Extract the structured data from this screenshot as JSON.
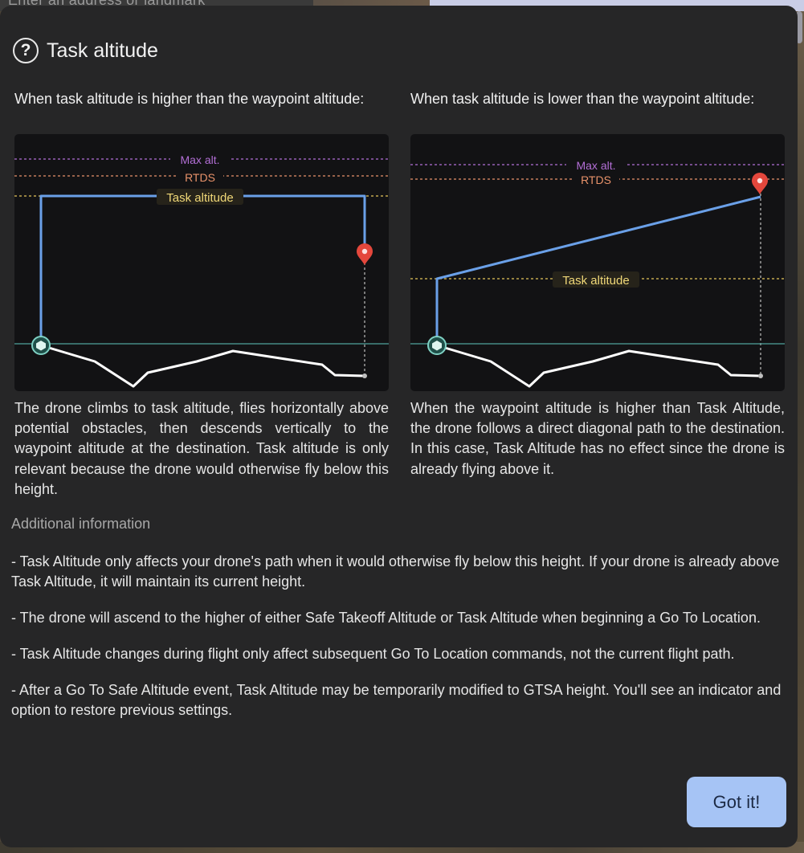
{
  "background": {
    "search_text": "Enter an address or landmark"
  },
  "dialog": {
    "title": "Task altitude",
    "help_icon_glyph": "?",
    "left": {
      "heading": "When task altitude is higher than the waypoint altitude:",
      "description": "The drone climbs to task altitude, flies horizontally above potential obstacles, then descends vertically to the waypoint altitude at the destination. Task altitude is only relevant because the drone would otherwise fly below this height.",
      "diagram": {
        "max_alt_label": "Max alt.",
        "rtds_label": "RTDS",
        "task_alt_label": "Task altitude"
      }
    },
    "right": {
      "heading": "When task altitude is lower than the waypoint altitude:",
      "description": "When the waypoint altitude is higher than Task Altitude, the drone follows a direct diagonal path to the destination. In this case, Task Altitude has no effect since the drone is already flying above it.",
      "diagram": {
        "max_alt_label": "Max alt.",
        "rtds_label": "RTDS",
        "task_alt_label": "Task altitude"
      }
    },
    "additional_title": "Additional information",
    "additional_items": [
      "- Task Altitude only affects your drone's path when it would otherwise fly below this height. If your drone is already above Task Altitude, it will maintain its current height.",
      "- The drone will ascend to the higher of either Safe Takeoff Altitude or Task Altitude when beginning a Go To Location.",
      "- Task Altitude changes during flight only affect subsequent Go To Location commands, not the current flight path.",
      "- After a Go To Safe Altitude event, Task Altitude may be temporarily modified to GTSA height. You'll see an indicator and option to restore previous settings."
    ],
    "got_it_label": "Got it!"
  },
  "colors": {
    "max_alt": "#b36fd6",
    "rtds": "#e8926a",
    "task_alt": "#e6c65a",
    "path": "#6aa0e8",
    "ground": "#4fa39c",
    "marker": "#e4473c",
    "button": "#a6c4f5"
  }
}
